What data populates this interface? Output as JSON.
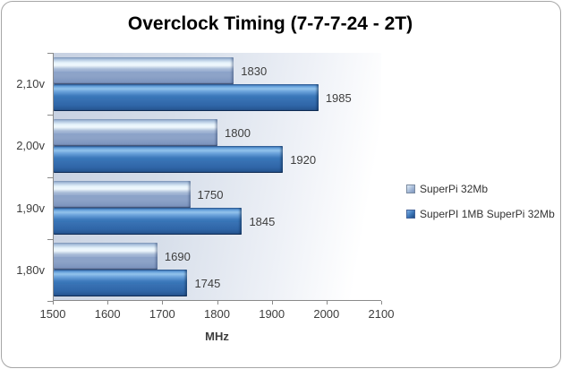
{
  "chart_data": {
    "type": "bar",
    "orientation": "horizontal",
    "title": "Overclock Timing (7-7-7-24 - 2T)",
    "categories": [
      "2,10v",
      "2,00v",
      "1,90v",
      "1,80v"
    ],
    "series": [
      {
        "name": "SuperPi 32Mb",
        "style": "light",
        "values": [
          1830,
          1800,
          1750,
          1690
        ]
      },
      {
        "name": "SuperPI 1MB SuperPi 32Mb",
        "style": "dark",
        "values": [
          1985,
          1920,
          1845,
          1745
        ]
      }
    ],
    "xlabel": "MHz",
    "ylabel": "",
    "xlim": [
      1500,
      2100
    ],
    "xticks": [
      1500,
      1600,
      1700,
      1800,
      1900,
      2000,
      2100
    ],
    "grid": false,
    "legend_position": "right-middle",
    "data_labels": true
  },
  "colors": {
    "series_light": "#8fa8cd",
    "series_dark": "#3a74b6",
    "plot_bg_left": "#c7d1e2",
    "plot_bg_right": "#ffffff",
    "axis_line": "#8a8a8a",
    "text": "#3d3d3d",
    "title_text": "#000000",
    "outer_border": "#a6a6a6"
  }
}
